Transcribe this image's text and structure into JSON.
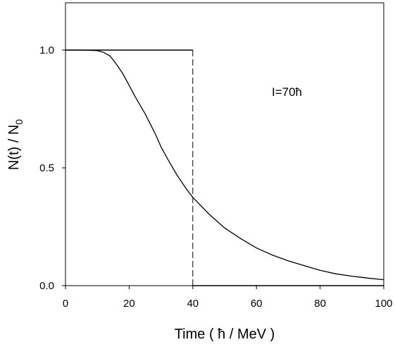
{
  "chart_data": {
    "type": "line",
    "xlabel": "Time ( ħ / MeV )",
    "ylabel_main": "N(t) / N",
    "ylabel_sub": "0",
    "annotation": "I=70ħ",
    "xlim": [
      0,
      100
    ],
    "ylim": [
      0,
      1.0
    ],
    "grid": false,
    "x_ticks": [
      0,
      20,
      40,
      60,
      80,
      100
    ],
    "x_tick_labels": [
      "0",
      "20",
      "40",
      "60",
      "80",
      "100"
    ],
    "y_ticks": [
      0.0,
      0.5,
      1.0
    ],
    "y_tick_labels": [
      "0.0",
      "0.5",
      "1.0"
    ],
    "series": [
      {
        "style": "solid",
        "x": [
          0,
          5,
          10,
          12,
          14,
          16,
          18,
          20,
          22,
          25,
          28,
          30,
          32,
          35,
          38,
          40,
          45,
          50,
          55,
          60,
          65,
          70,
          75,
          80,
          85,
          90,
          95,
          100
        ],
        "y": [
          1.0,
          1.0,
          0.998,
          0.99,
          0.975,
          0.94,
          0.9,
          0.85,
          0.8,
          0.73,
          0.65,
          0.59,
          0.54,
          0.47,
          0.41,
          0.375,
          0.305,
          0.245,
          0.2,
          0.16,
          0.13,
          0.105,
          0.085,
          0.065,
          0.05,
          0.04,
          0.032,
          0.025
        ]
      },
      {
        "style": "step",
        "x": [
          0,
          40,
          40,
          100
        ],
        "y": [
          1.0,
          1.0,
          0.0,
          0.0
        ]
      }
    ]
  }
}
